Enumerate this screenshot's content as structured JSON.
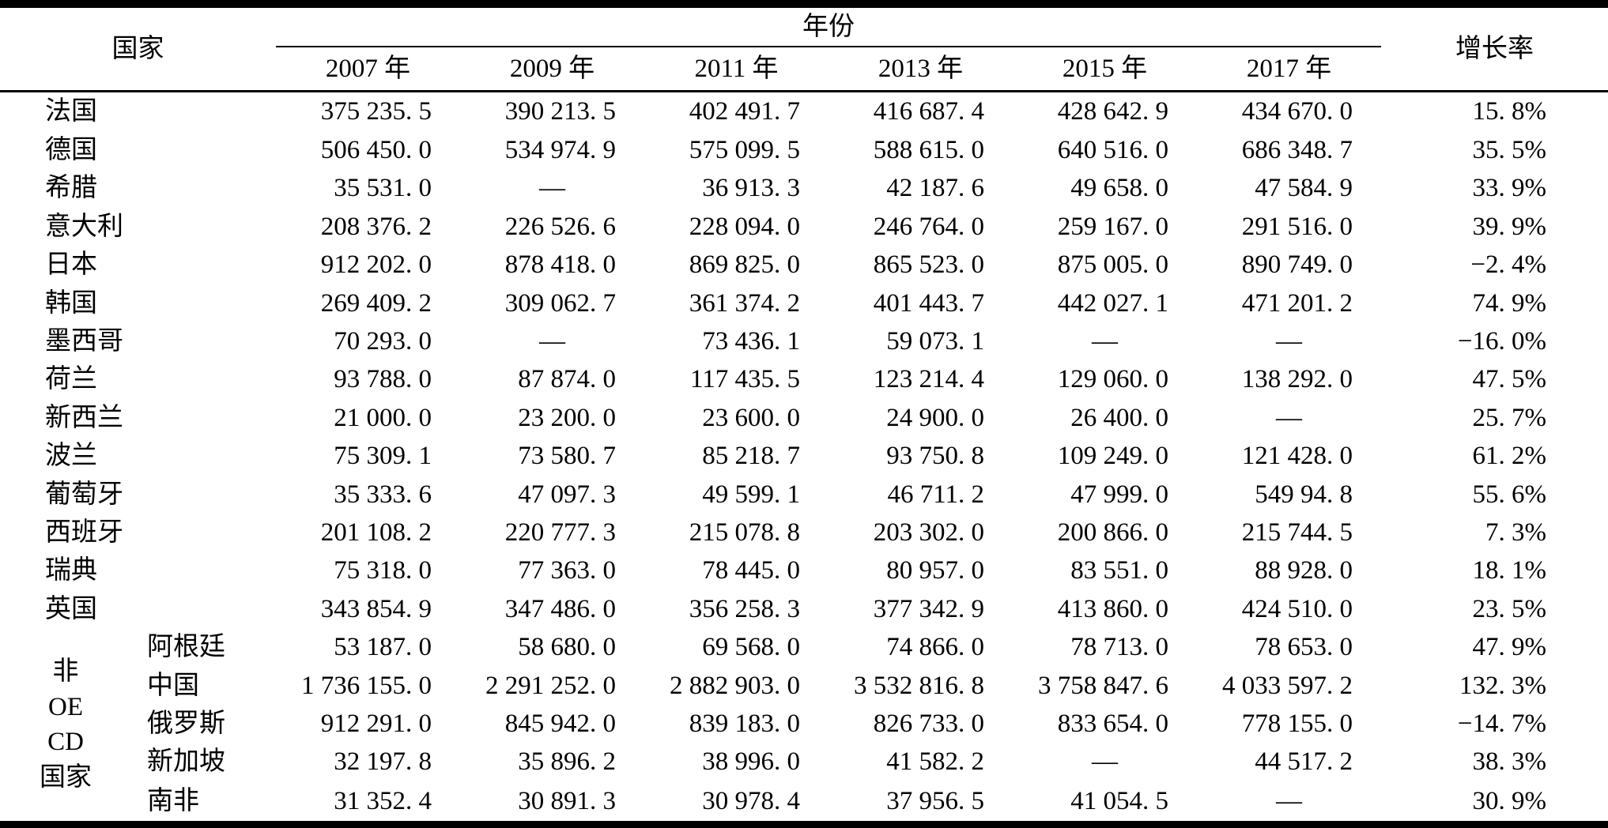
{
  "table": {
    "header": {
      "country_label": "国家",
      "year_group_label": "年份",
      "growth_label": "增长率",
      "year_columns": [
        "2007 年",
        "2009 年",
        "2011 年",
        "2013 年",
        "2015 年",
        "2017 年"
      ]
    },
    "group": {
      "label_lines": [
        "非",
        "OE",
        "CD",
        "国家"
      ],
      "row_count": 5
    },
    "missing_marker": "—",
    "rows": [
      {
        "country": "法国",
        "in_group": false,
        "values": [
          "375 235. 5",
          "390 213. 5",
          "402 491. 7",
          "416 687. 4",
          "428 642. 9",
          "434 670. 0"
        ],
        "growth": "15. 8%"
      },
      {
        "country": "德国",
        "in_group": false,
        "values": [
          "506 450. 0",
          "534 974. 9",
          "575 099. 5",
          "588 615. 0",
          "640 516. 0",
          "686 348. 7"
        ],
        "growth": "35. 5%"
      },
      {
        "country": "希腊",
        "in_group": false,
        "values": [
          "35 531. 0",
          "—",
          "36 913. 3",
          "42 187. 6",
          "49 658. 0",
          "47 584. 9"
        ],
        "growth": "33. 9%"
      },
      {
        "country": "意大利",
        "in_group": false,
        "values": [
          "208 376. 2",
          "226 526. 6",
          "228 094. 0",
          "246 764. 0",
          "259 167. 0",
          "291 516. 0"
        ],
        "growth": "39. 9%"
      },
      {
        "country": "日本",
        "in_group": false,
        "values": [
          "912 202. 0",
          "878 418. 0",
          "869 825. 0",
          "865 523. 0",
          "875 005. 0",
          "890 749. 0"
        ],
        "growth": "−2. 4%"
      },
      {
        "country": "韩国",
        "in_group": false,
        "values": [
          "269 409. 2",
          "309 062. 7",
          "361 374. 2",
          "401 443. 7",
          "442 027. 1",
          "471 201. 2"
        ],
        "growth": "74. 9%"
      },
      {
        "country": "墨西哥",
        "in_group": false,
        "values": [
          "70 293. 0",
          "—",
          "73 436. 1",
          "59 073. 1",
          "—",
          "—"
        ],
        "growth": "−16. 0%"
      },
      {
        "country": "荷兰",
        "in_group": false,
        "values": [
          "93 788. 0",
          "87 874. 0",
          "117 435. 5",
          "123 214. 4",
          "129 060. 0",
          "138 292. 0"
        ],
        "growth": "47. 5%"
      },
      {
        "country": "新西兰",
        "in_group": false,
        "values": [
          "21 000. 0",
          "23 200. 0",
          "23 600. 0",
          "24 900. 0",
          "26 400. 0",
          "—"
        ],
        "growth": "25. 7%"
      },
      {
        "country": "波兰",
        "in_group": false,
        "values": [
          "75 309. 1",
          "73 580. 7",
          "85 218. 7",
          "93 750. 8",
          "109 249. 0",
          "121 428. 0"
        ],
        "growth": "61. 2%"
      },
      {
        "country": "葡萄牙",
        "in_group": false,
        "values": [
          "35 333. 6",
          "47 097. 3",
          "49 599. 1",
          "46 711. 2",
          "47 999. 0",
          "549 94. 8"
        ],
        "growth": "55. 6%"
      },
      {
        "country": "西班牙",
        "in_group": false,
        "values": [
          "201 108. 2",
          "220 777. 3",
          "215 078. 8",
          "203 302. 0",
          "200 866. 0",
          "215 744. 5"
        ],
        "growth": "7. 3%"
      },
      {
        "country": "瑞典",
        "in_group": false,
        "values": [
          "75 318. 0",
          "77 363. 0",
          "78 445. 0",
          "80 957. 0",
          "83 551. 0",
          "88 928. 0"
        ],
        "growth": "18. 1%"
      },
      {
        "country": "英国",
        "in_group": false,
        "values": [
          "343 854. 9",
          "347 486. 0",
          "356 258. 3",
          "377 342. 9",
          "413 860. 0",
          "424 510. 0"
        ],
        "growth": "23. 5%"
      },
      {
        "country": "阿根廷",
        "in_group": true,
        "values": [
          "53 187. 0",
          "58 680. 0",
          "69 568. 0",
          "74 866. 0",
          "78 713. 0",
          "78 653. 0"
        ],
        "growth": "47. 9%"
      },
      {
        "country": "中国",
        "in_group": true,
        "values": [
          "1 736 155. 0",
          "2 291 252. 0",
          "2 882 903. 0",
          "3 532 816. 8",
          "3 758 847. 6",
          "4 033 597. 2"
        ],
        "growth": "132. 3%"
      },
      {
        "country": "俄罗斯",
        "in_group": true,
        "values": [
          "912 291. 0",
          "845 942. 0",
          "839 183. 0",
          "826 733. 0",
          "833 654. 0",
          "778 155. 0"
        ],
        "growth": "−14. 7%"
      },
      {
        "country": "新加坡",
        "in_group": true,
        "values": [
          "32 197. 8",
          "35 896. 2",
          "38 996. 0",
          "41 582. 2",
          "—",
          "44 517. 2"
        ],
        "growth": "38. 3%"
      },
      {
        "country": "南非",
        "in_group": true,
        "values": [
          "31 352. 4",
          "30 891. 3",
          "30 978. 4",
          "37 956. 5",
          "41 054. 5",
          "—"
        ],
        "growth": "30. 9%"
      }
    ]
  }
}
